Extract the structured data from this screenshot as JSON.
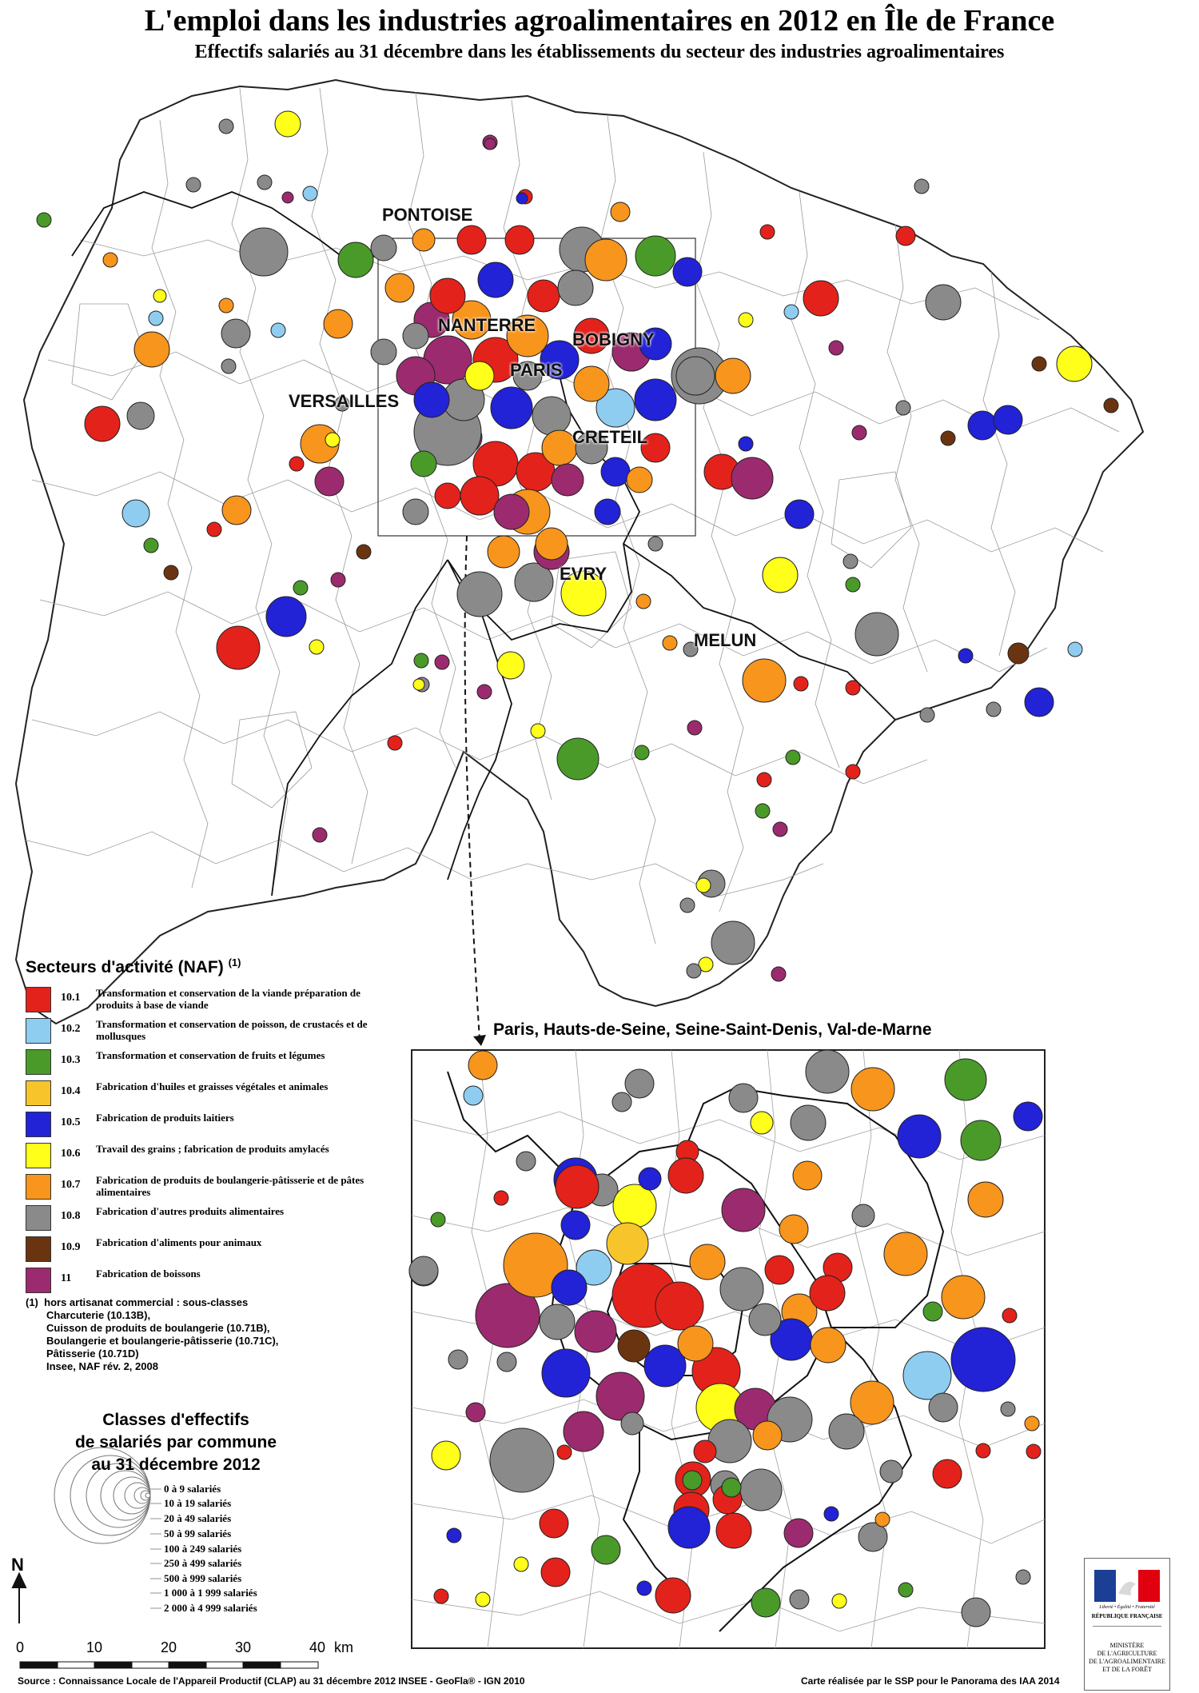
{
  "title": "L'emploi dans les industries agroalimentaires en 2012 en Île de France",
  "subtitle": "Effectifs salariés au 31 décembre  dans les établissements du secteur des industries agroalimentaires",
  "cities": [
    "PONTOISE",
    "NANTERRE",
    "BOBIGNY",
    "PARIS",
    "VERSAILLES",
    "CRETEIL",
    "EVRY",
    "MELUN"
  ],
  "inset_title": "Paris, Hauts-de-Seine, Seine-Saint-Denis, Val-de-Marne",
  "legend": {
    "title": "Secteurs d'activité (NAF)",
    "title_note": "(1)",
    "sectors": [
      {
        "code": "10.1",
        "label": "Transformation et conservation de la viande préparation de produits à base de viande",
        "color": "#e3221b"
      },
      {
        "code": "10.2",
        "label": "Transformation et conservation de poisson, de crustacés et de mollusques",
        "color": "#8ecdf0"
      },
      {
        "code": "10.3",
        "label": "Transformation et conservation de fruits et légumes",
        "color": "#4a9a2a"
      },
      {
        "code": "10.4",
        "label": "Fabrication d'huiles et graisses végétales et animales",
        "color": "#f7c52b"
      },
      {
        "code": "10.5",
        "label": "Fabrication de produits laitiers",
        "color": "#2222d6"
      },
      {
        "code": "10.6",
        "label": "Travail des grains ; fabrication de produits amylacés",
        "color": "#ffff1a"
      },
      {
        "code": "10.7",
        "label": "Fabrication de produits de boulangerie-pâtisserie et de pâtes alimentaires",
        "color": "#f8951d"
      },
      {
        "code": "10.8",
        "label": "Fabrication d'autres produits alimentaires",
        "color": "#8a8a8a"
      },
      {
        "code": "10.9",
        "label": "Fabrication d'aliments pour animaux",
        "color": "#6b3410"
      },
      {
        "code": "11",
        "label": "Fabrication de boissons",
        "color": "#9b2b6e"
      }
    ],
    "footnote": {
      "marker": "(1)",
      "lines": [
        "hors artisanat commercial : sous-classes",
        "Charcuterie (10.13B),",
        "Cuisson de produits de boulangerie (10.71B),",
        "Boulangerie et boulangerie-pâtisserie (10.71C),",
        "Pâtisserie (10.71D)",
        "Insee, NAF rév. 2, 2008"
      ]
    }
  },
  "size_classes": {
    "title_lines": [
      "Classes d'effectifs",
      "de salariés par commune",
      "au 31 décembre 2012"
    ],
    "items": [
      "0 à 9 salariés",
      "10 à 19 salariés",
      "20 à 49 salariés",
      "50 à 99 salariés",
      "100 à 249 salariés",
      "250 à 499 salariés",
      "500 à 999 salariés",
      "1 000 à 1 999 salariés",
      "2 000 à 4 999 salariés"
    ]
  },
  "north_label": "N",
  "scale": {
    "ticks": [
      "0",
      "10",
      "20",
      "30",
      "40"
    ],
    "unit": "km"
  },
  "source": "Source : Connaissance Locale de l'Appareil Productif (CLAP) au 31 décembre 2012  INSEE - GeoFla® - IGN 2010",
  "credit": "Carte réalisée par le SSP pour le Panorama des IAA 2014",
  "logo": {
    "motto": "Liberté • Égalité • Fraternité",
    "republic": "RÉPUBLIQUE FRANÇAISE",
    "ministry_lines": [
      "MINISTÈRE",
      "DE L'AGRICULTURE",
      "DE L'AGROALIMENTAIRE",
      "ET DE LA FORÊT"
    ]
  }
}
